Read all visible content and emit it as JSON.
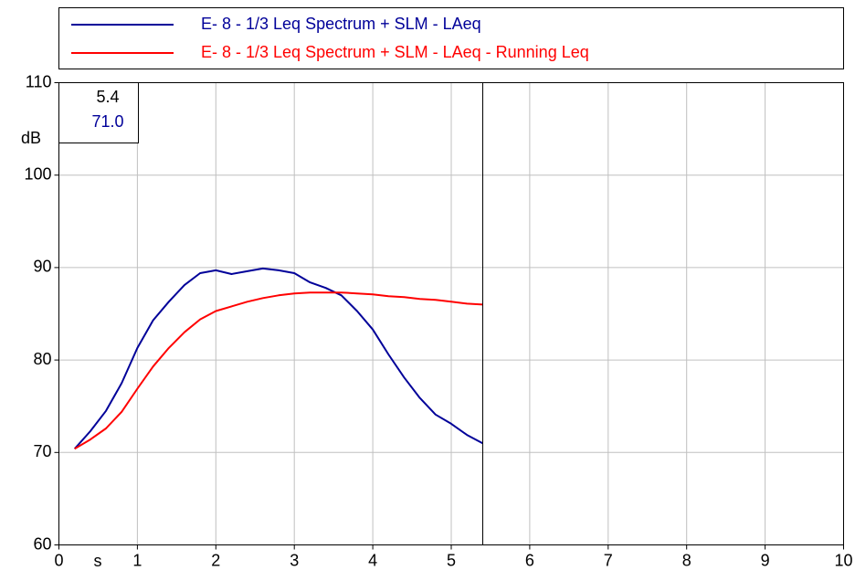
{
  "chart_data": {
    "type": "line",
    "xlim": [
      0,
      10
    ],
    "ylim": [
      60,
      110
    ],
    "x_ticks": [
      0,
      1,
      2,
      3,
      4,
      5,
      6,
      7,
      8,
      9,
      10
    ],
    "y_ticks": [
      60,
      70,
      80,
      90,
      100,
      110
    ],
    "x_unit": "s",
    "y_unit": "dB",
    "grid": true,
    "legend_position": "top",
    "cursor": {
      "x": 5.4,
      "value": 71.0,
      "x_label": "5.4",
      "value_label": "71.0"
    },
    "series": [
      {
        "name": "E- 8 - 1/3 Leq Spectrum + SLM - LAeq",
        "color": "#000099",
        "x": [
          0.2,
          0.4,
          0.6,
          0.8,
          1.0,
          1.2,
          1.4,
          1.6,
          1.8,
          2.0,
          2.2,
          2.4,
          2.6,
          2.8,
          3.0,
          3.2,
          3.4,
          3.6,
          3.8,
          4.0,
          4.2,
          4.4,
          4.6,
          4.8,
          5.0,
          5.2,
          5.4
        ],
        "values": [
          70.4,
          72.3,
          74.5,
          77.5,
          81.3,
          84.3,
          86.3,
          88.1,
          89.4,
          89.7,
          89.3,
          89.6,
          89.9,
          89.7,
          89.4,
          88.4,
          87.8,
          87.0,
          85.3,
          83.3,
          80.6,
          78.1,
          75.9,
          74.1,
          73.1,
          71.9,
          71.0
        ]
      },
      {
        "name": "E- 8 - 1/3 Leq Spectrum + SLM - LAeq - Running Leq",
        "color": "#ff0000",
        "x": [
          0.2,
          0.4,
          0.6,
          0.8,
          1.0,
          1.2,
          1.4,
          1.6,
          1.8,
          2.0,
          2.2,
          2.4,
          2.6,
          2.8,
          3.0,
          3.2,
          3.4,
          3.6,
          3.8,
          4.0,
          4.2,
          4.4,
          4.6,
          4.8,
          5.0,
          5.2,
          5.4
        ],
        "values": [
          70.4,
          71.4,
          72.6,
          74.4,
          76.9,
          79.3,
          81.3,
          83.0,
          84.4,
          85.3,
          85.8,
          86.3,
          86.7,
          87.0,
          87.2,
          87.3,
          87.3,
          87.3,
          87.2,
          87.1,
          86.9,
          86.8,
          86.6,
          86.5,
          86.3,
          86.1,
          86.0
        ]
      }
    ]
  }
}
